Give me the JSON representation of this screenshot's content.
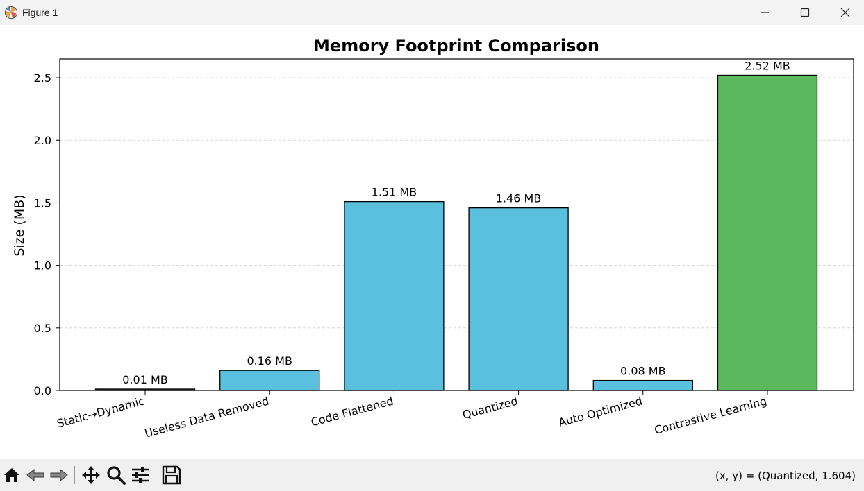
{
  "window": {
    "title": "Figure 1",
    "icon": "matplotlib-icon"
  },
  "titlebar_buttons": [
    "minimize-icon",
    "maximize-icon",
    "close-icon"
  ],
  "toolbar": {
    "tools": [
      "home-icon",
      "back-arrow-icon",
      "forward-arrow-icon",
      "pan-icon",
      "zoom-icon",
      "configure-subplots-icon",
      "save-icon"
    ],
    "coords_text": "(x, y) = (Quantized, 1.604)"
  },
  "colors": {
    "bar_blue": "#5bc0de",
    "bar_green": "#5cb85c",
    "bar_dark": "#3a1f1f",
    "edge": "#000000",
    "grid": "#cccccc"
  },
  "chart_data": {
    "type": "bar",
    "title": "Memory Footprint Comparison",
    "xlabel": "",
    "ylabel": "Size (MB)",
    "categories": [
      "Static→Dynamic",
      "Useless Data Removed",
      "Code Flattened",
      "Quantized",
      "Auto Optimized",
      "Contrastive Learning"
    ],
    "values": [
      0.01,
      0.16,
      1.51,
      1.46,
      0.08,
      2.52
    ],
    "value_labels": [
      "0.01 MB",
      "0.16 MB",
      "1.51 MB",
      "1.46 MB",
      "0.08 MB",
      "2.52 MB"
    ],
    "bar_colors": [
      "#3a1f1f",
      "#5bc0de",
      "#5bc0de",
      "#5bc0de",
      "#5bc0de",
      "#5cb85c"
    ],
    "ylim": [
      0,
      2.65
    ],
    "yticks": [
      0.0,
      0.5,
      1.0,
      1.5,
      2.0,
      2.5
    ],
    "ytick_labels": [
      "0.0",
      "0.5",
      "1.0",
      "1.5",
      "2.0",
      "2.5"
    ],
    "grid": "y-dashed",
    "x_tick_rotation": "slanted"
  }
}
